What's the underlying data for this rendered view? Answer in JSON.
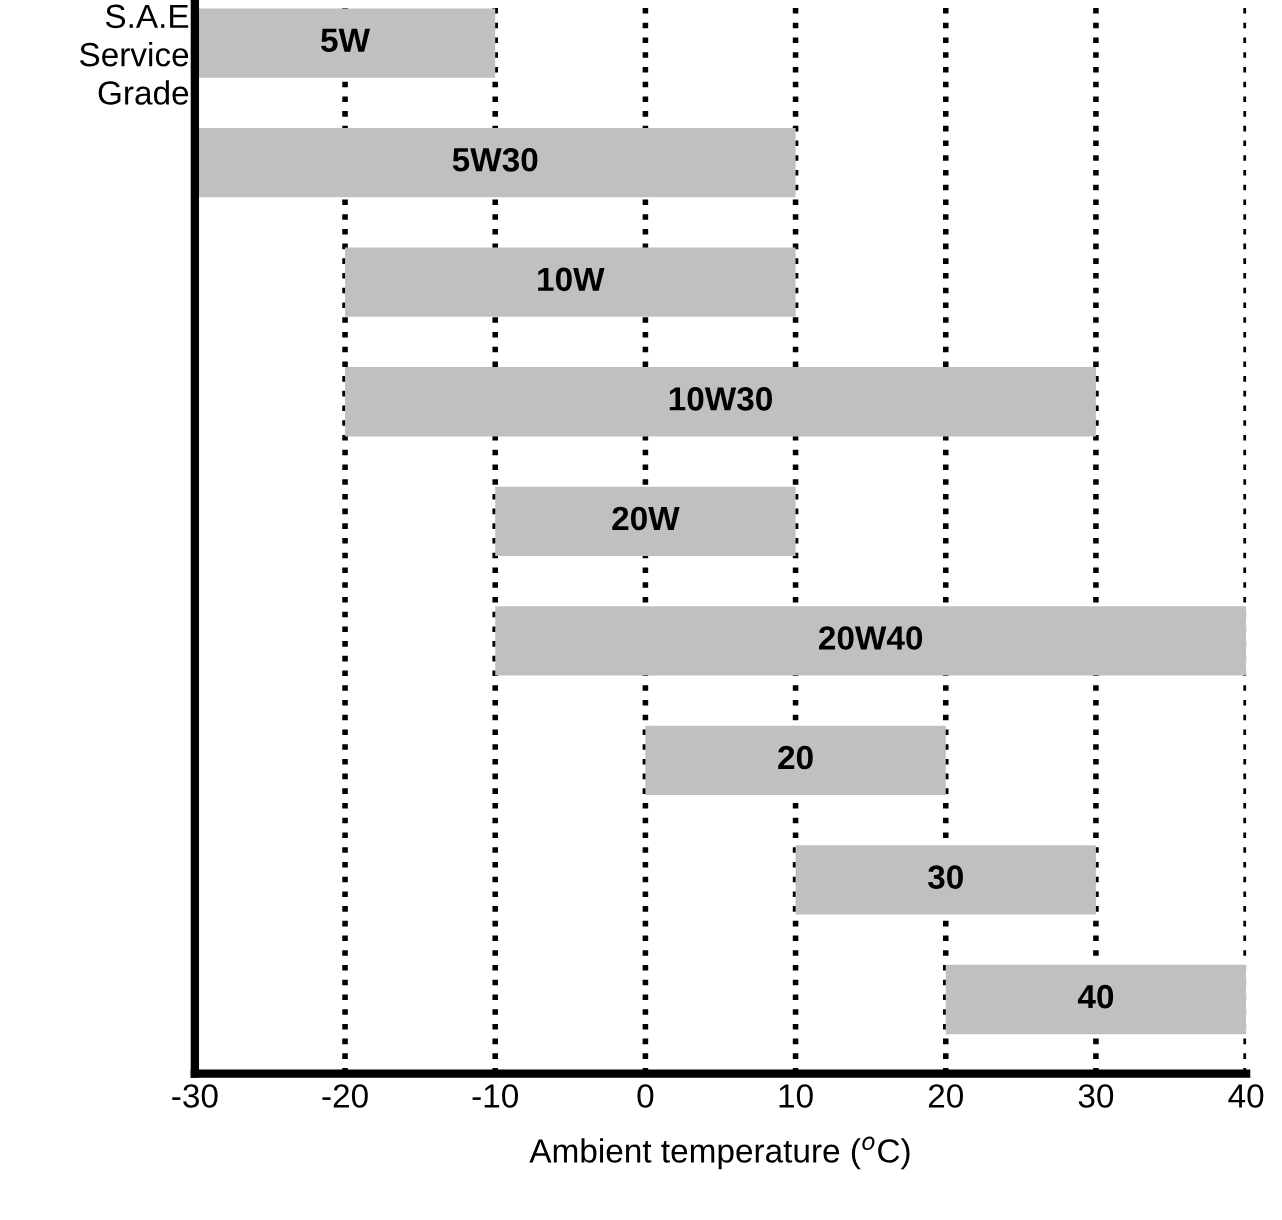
{
  "chart_data": {
    "type": "bar",
    "orientation": "horizontal",
    "ylabel": "S.A.E\nService\nGrade",
    "xlabel": "Ambient temperature ($^{o}$C)",
    "categories": [
      "5W",
      "5W30",
      "10W",
      "10W30",
      "20W",
      "20W40",
      "20",
      "30",
      "40"
    ],
    "base": [
      -30,
      -30,
      -20,
      -20,
      -10,
      -10,
      0,
      10,
      20
    ],
    "values": [
      20,
      40,
      30,
      50,
      20,
      50,
      20,
      20,
      20
    ],
    "color": "#c0c0c0",
    "xlim": [
      -30,
      40
    ],
    "xticks": [
      -30,
      -20,
      -10,
      0,
      10,
      20,
      30,
      40
    ],
    "grid": "x",
    "tick_labels": "x",
    "legend": false
  }
}
